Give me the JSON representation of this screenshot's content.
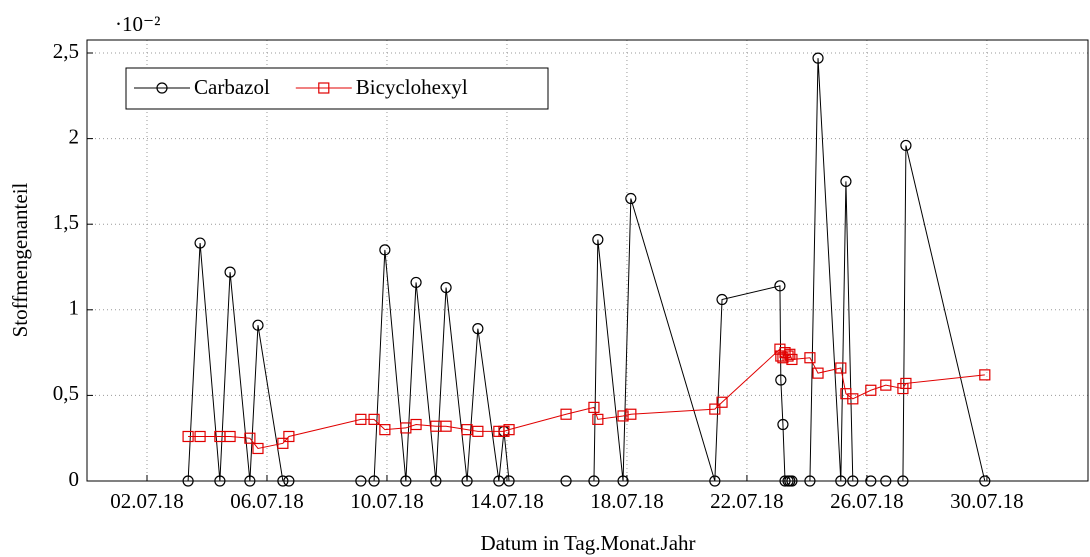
{
  "chart_data": {
    "type": "line",
    "x_label": "Datum in Tag.Monat.Jahr",
    "y_label": "Stoffmengenanteil",
    "y_scale_label": "·10⁻²",
    "x": [
      3.37,
      3.77,
      4.43,
      4.77,
      5.43,
      5.7,
      6.53,
      6.73,
      9.13,
      9.57,
      9.93,
      10.63,
      10.97,
      11.63,
      11.97,
      12.67,
      13.03,
      13.73,
      13.9,
      14.07,
      15.97,
      16.9,
      17.03,
      17.87,
      18.13,
      20.93,
      21.17,
      23.1,
      23.13,
      23.2,
      23.27,
      23.37,
      23.43,
      23.5,
      24.1,
      24.37,
      25.13,
      25.3,
      25.53,
      26.13,
      26.63,
      27.2,
      27.3,
      29.93
    ],
    "series": [
      {
        "name": "Carbazol",
        "color": "#000000",
        "marker": "circle",
        "values": [
          0,
          1.39,
          0,
          1.22,
          0,
          0.91,
          0,
          0,
          0,
          0,
          1.35,
          0,
          1.16,
          0,
          1.13,
          0,
          0.89,
          0,
          0.29,
          0,
          0,
          0,
          1.41,
          0,
          1.65,
          0,
          1.06,
          1.14,
          0.59,
          0.33,
          0,
          0,
          0,
          0,
          0,
          2.47,
          0,
          1.75,
          0,
          0,
          0,
          0,
          1.96,
          0
        ]
      },
      {
        "name": "Bicyclohexyl",
        "color": "#e00000",
        "marker": "square",
        "values": [
          0.26,
          0.26,
          0.26,
          0.26,
          0.25,
          0.19,
          0.22,
          0.26,
          0.36,
          0.36,
          0.3,
          0.31,
          0.33,
          0.32,
          0.32,
          0.3,
          0.29,
          0.29,
          0.29,
          0.3,
          0.39,
          0.43,
          0.36,
          0.38,
          0.39,
          0.42,
          0.46,
          0.77,
          0.73,
          0.72,
          0.75,
          0.73,
          0.74,
          0.71,
          0.72,
          0.63,
          0.66,
          0.51,
          0.48,
          0.53,
          0.56,
          0.54,
          0.57,
          0.62
        ]
      }
    ],
    "xlim": [
      0,
      33.37
    ],
    "xticks": [
      {
        "value": 2,
        "label": "02.07.18"
      },
      {
        "value": 6,
        "label": "06.07.18"
      },
      {
        "value": 10,
        "label": "10.07.18"
      },
      {
        "value": 14,
        "label": "14.07.18"
      },
      {
        "value": 18,
        "label": "18.07.18"
      },
      {
        "value": 22,
        "label": "22.07.18"
      },
      {
        "value": 26,
        "label": "26.07.18"
      },
      {
        "value": 30,
        "label": "30.07.18"
      }
    ],
    "ylim": [
      0,
      2.576
    ],
    "yticks": [
      0,
      {
        "value": 0.5,
        "label": "0,5"
      },
      1,
      {
        "value": 1.5,
        "label": "1,5"
      },
      2,
      {
        "value": 2.5,
        "label": "2,5"
      }
    ],
    "grid": true,
    "legend": "upper left"
  }
}
